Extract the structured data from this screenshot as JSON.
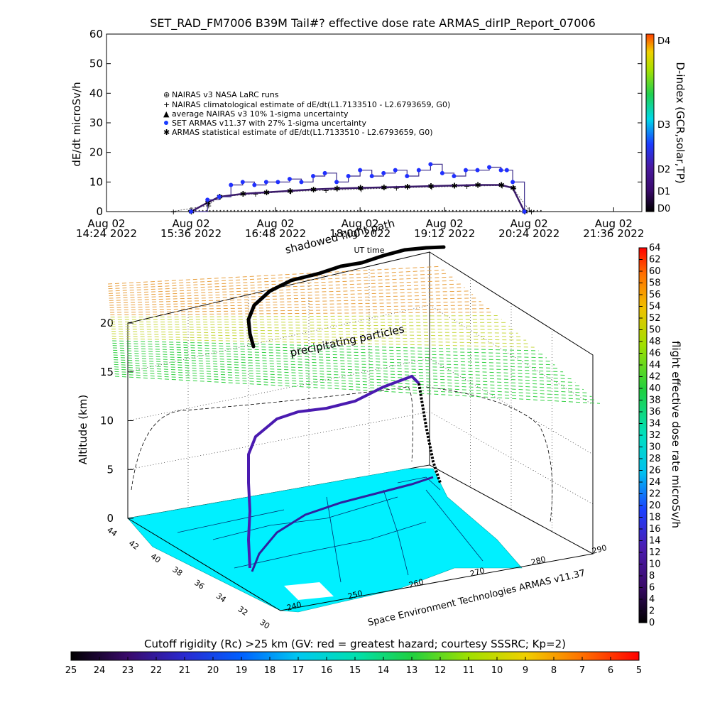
{
  "title": "SET_RAD_FM7006   B39M Tail#? effective dose rate ARMAS_dirIP_Report_07006",
  "top_panel": {
    "ylabel": "dE/dt microSv/h",
    "yticks": [
      "0",
      "10",
      "20",
      "30",
      "40",
      "50",
      "60"
    ],
    "xticks": [
      {
        "date": "Aug 02",
        "time": "14:24 2022"
      },
      {
        "date": "Aug 02",
        "time": "15:36 2022"
      },
      {
        "date": "Aug 02",
        "time": "16:48 2022"
      },
      {
        "date": "Aug 02",
        "time": "18:00 2022"
      },
      {
        "date": "Aug 02",
        "time": "19:12 2022"
      },
      {
        "date": "Aug 02",
        "time": "20:24 2022"
      },
      {
        "date": "Aug 02",
        "time": "21:36 2022"
      }
    ],
    "xlabel": "UT time",
    "legend": [
      "NAIRAS v3 NASA LaRC runs",
      "NAIRAS climatological estimate of dE/dt(L1.7133510 - L2.6793659, G0)",
      "average NAIRAS v3 10% 1-sigma uncertainty",
      "SET ARMAS v11.37 with 27% 1-sigma uncertainty",
      "ARMAS statistical estimate of dE/dt(L1.7133510 - L2.6793659, G0)"
    ],
    "dindex_label": "D-index (GCR,solar,TP)",
    "dindex_ticks": [
      "D0",
      "D1",
      "D2",
      "D3",
      "D4"
    ]
  },
  "overlay_text": {
    "shadowed_flight_path": "shadowed flight path",
    "precipitating_particles": "precipitating particles"
  },
  "main_panel": {
    "zlabel": "Altitude (km)",
    "zticks": [
      "0",
      "5",
      "10",
      "15",
      "20"
    ],
    "lat_ticks": [
      "44",
      "42",
      "40",
      "38",
      "36",
      "34",
      "32",
      "30"
    ],
    "lon_ticks": [
      "240",
      "250",
      "260",
      "270",
      "280",
      "290"
    ],
    "credit": "Space Environment Technologies ARMAS v11.37",
    "dose_label": "flight effective dose rate microSv/h",
    "dose_ticks": [
      "0",
      "2",
      "4",
      "6",
      "8",
      "10",
      "12",
      "14",
      "16",
      "18",
      "20",
      "22",
      "24",
      "26",
      "28",
      "30",
      "32",
      "34",
      "36",
      "38",
      "40",
      "42",
      "44",
      "46",
      "48",
      "50",
      "52",
      "54",
      "56",
      "58",
      "60",
      "62",
      "64"
    ]
  },
  "cutoff": {
    "label": "Cutoff rigidity (Rc) >25 km (GV: red = greatest hazard; courtesy SSSRC; Kp=2)",
    "ticks": [
      "25",
      "24",
      "23",
      "22",
      "21",
      "20",
      "19",
      "18",
      "17",
      "16",
      "15",
      "14",
      "13",
      "12",
      "11",
      "10",
      "9",
      "8",
      "7",
      "6",
      "5"
    ]
  },
  "chart_data": [
    {
      "type": "scatter",
      "title": "SET_RAD_FM7006   B39M Tail#? effective dose rate ARMAS_dirIP_Report_07006",
      "xlabel": "UT time",
      "ylabel": "dE/dt microSv/h",
      "ylim": [
        0,
        60
      ],
      "xlim": [
        "2022-08-02 14:24",
        "2022-08-02 22:00"
      ],
      "series": [
        {
          "name": "SET ARMAS v11.37 with 27% 1-sigma uncertainty",
          "x": [
            "15:36",
            "15:50",
            "16:00",
            "16:10",
            "16:20",
            "16:30",
            "16:40",
            "16:50",
            "17:00",
            "17:10",
            "17:20",
            "17:30",
            "17:40",
            "17:50",
            "18:00",
            "18:10",
            "18:20",
            "18:30",
            "18:40",
            "18:50",
            "19:00",
            "19:10",
            "19:20",
            "19:30",
            "19:40",
            "19:50",
            "20:00",
            "20:05",
            "20:10",
            "20:20"
          ],
          "y": [
            0,
            4,
            5,
            9,
            10,
            9,
            10,
            10,
            11,
            10,
            12,
            13,
            10,
            12,
            14,
            12,
            13,
            14,
            12,
            14,
            16,
            13,
            12,
            14,
            14,
            15,
            14,
            14,
            10,
            0
          ]
        },
        {
          "name": "ARMAS statistical estimate of dE/dt(L1.7133510 - L2.6793659, G0)",
          "x": [
            "15:36",
            "15:50",
            "16:00",
            "16:20",
            "16:40",
            "17:00",
            "17:20",
            "17:40",
            "18:00",
            "18:20",
            "18:40",
            "19:00",
            "19:20",
            "19:40",
            "20:00",
            "20:10",
            "20:20"
          ],
          "y": [
            0,
            3,
            5,
            6,
            6.5,
            7,
            7.5,
            7.8,
            8,
            8.2,
            8.4,
            8.6,
            8.8,
            9,
            9,
            8,
            0
          ]
        },
        {
          "name": "NAIRAS climatological estimate of dE/dt(L1.7133510 - L2.6793659, G0)",
          "x": [
            "15:20",
            "15:50",
            "16:00",
            "16:30",
            "17:00",
            "17:30",
            "18:00",
            "18:30",
            "19:00",
            "19:30",
            "20:00",
            "20:10",
            "20:25"
          ],
          "y": [
            0,
            2,
            5,
            6,
            6.8,
            7.2,
            7.6,
            8,
            8.3,
            8.6,
            8.8,
            8,
            0
          ]
        }
      ],
      "right_axis": {
        "label": "D-index (GCR,solar,TP)",
        "ticks": [
          "D0",
          "D1",
          "D2",
          "D3",
          "D4"
        ]
      }
    },
    {
      "type": "scatter",
      "xlabel": "",
      "ylabel": "Altitude (km)",
      "zlim": [
        0,
        20
      ],
      "lon_range": [
        240,
        290
      ],
      "lat_range": [
        30,
        44
      ],
      "flight_path": {
        "lon": [
          241.6,
          241.9,
          243.0,
          245.0,
          248.0,
          251.0,
          254.0,
          257.0,
          260.0,
          263.0,
          266.0,
          268.0,
          269.4
        ],
        "lat": [
          33.0,
          35.0,
          37.0,
          38.6,
          39.6,
          40.4,
          41.0,
          41.6,
          42.0,
          42.4,
          42.8,
          43.3,
          43.6
        ],
        "alt_km": [
          0,
          7.5,
          10.2,
          11.5,
          12.1,
          12.5,
          12.8,
          13.1,
          13.4,
          13.7,
          13.9,
          14.0,
          0
        ]
      },
      "colorbar": {
        "label": "flight effective dose rate microSv/h",
        "range": [
          0,
          64
        ]
      }
    }
  ]
}
